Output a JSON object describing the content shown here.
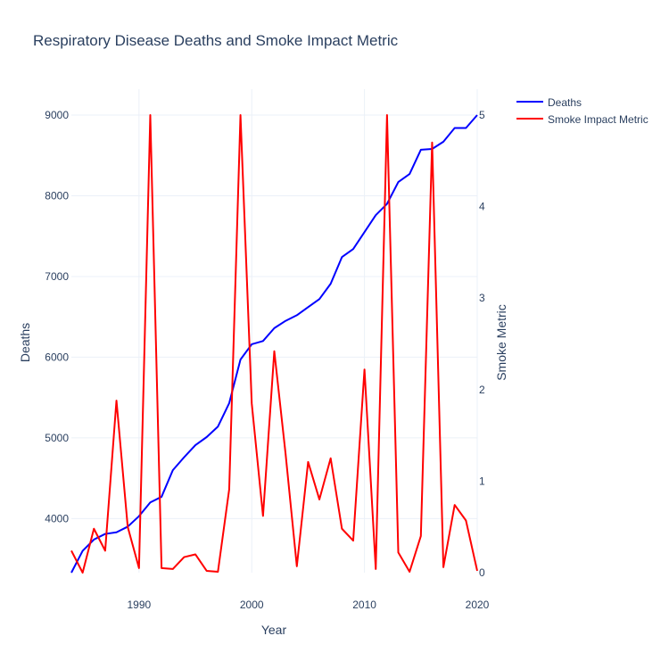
{
  "chart_data": {
    "type": "line",
    "title": "Respiratory Disease Deaths and Smoke Impact Metric",
    "xlabel": "Year",
    "ylabel": "Deaths",
    "y2label": "Smoke Metric",
    "xlim": [
      1984,
      2020
    ],
    "ylim": [
      3330,
      9000
    ],
    "y2lim": [
      0,
      5
    ],
    "x_ticks": [
      1990,
      2000,
      2010,
      2020
    ],
    "y_ticks": [
      4000,
      5000,
      6000,
      7000,
      8000,
      9000
    ],
    "y2_ticks": [
      0,
      1,
      2,
      3,
      4,
      5
    ],
    "grid": true,
    "legend_position": "top-right",
    "series": [
      {
        "name": "Deaths",
        "axis": "y",
        "color": "#0000ff",
        "x": [
          1984,
          1985,
          1986,
          1987,
          1988,
          1989,
          1990,
          1991,
          1992,
          1993,
          1994,
          1995,
          1996,
          1997,
          1998,
          1999,
          2000,
          2001,
          2002,
          2003,
          2004,
          2005,
          2006,
          2007,
          2008,
          2009,
          2010,
          2011,
          2012,
          2013,
          2014,
          2015,
          2016,
          2017,
          2018,
          2019,
          2020
        ],
        "values": [
          3330,
          3600,
          3740,
          3810,
          3830,
          3900,
          4030,
          4200,
          4270,
          4600,
          4760,
          4910,
          5010,
          5140,
          5430,
          5970,
          6160,
          6200,
          6360,
          6450,
          6520,
          6620,
          6720,
          6910,
          7240,
          7340,
          7550,
          7760,
          7900,
          8170,
          8270,
          8570,
          8580,
          8670,
          8840,
          8840,
          9000
        ]
      },
      {
        "name": "Smoke Impact Metric",
        "axis": "y2",
        "color": "#ff0000",
        "x": [
          1984,
          1985,
          1986,
          1987,
          1988,
          1989,
          1990,
          1991,
          1992,
          1993,
          1994,
          1995,
          1996,
          1997,
          1998,
          1999,
          2000,
          2001,
          2002,
          2003,
          2004,
          2005,
          2006,
          2007,
          2008,
          2009,
          2010,
          2011,
          2012,
          2013,
          2014,
          2015,
          2016,
          2017,
          2018,
          2019,
          2020
        ],
        "values": [
          0.24,
          0.0,
          0.48,
          0.24,
          1.88,
          0.5,
          0.05,
          5.0,
          0.05,
          0.04,
          0.17,
          0.2,
          0.02,
          0.01,
          0.91,
          5.0,
          1.85,
          0.62,
          2.42,
          1.3,
          0.07,
          1.21,
          0.8,
          1.25,
          0.48,
          0.35,
          2.22,
          0.04,
          5.0,
          0.22,
          0.01,
          0.4,
          4.7,
          0.06,
          0.74,
          0.57,
          0.02
        ]
      }
    ]
  }
}
